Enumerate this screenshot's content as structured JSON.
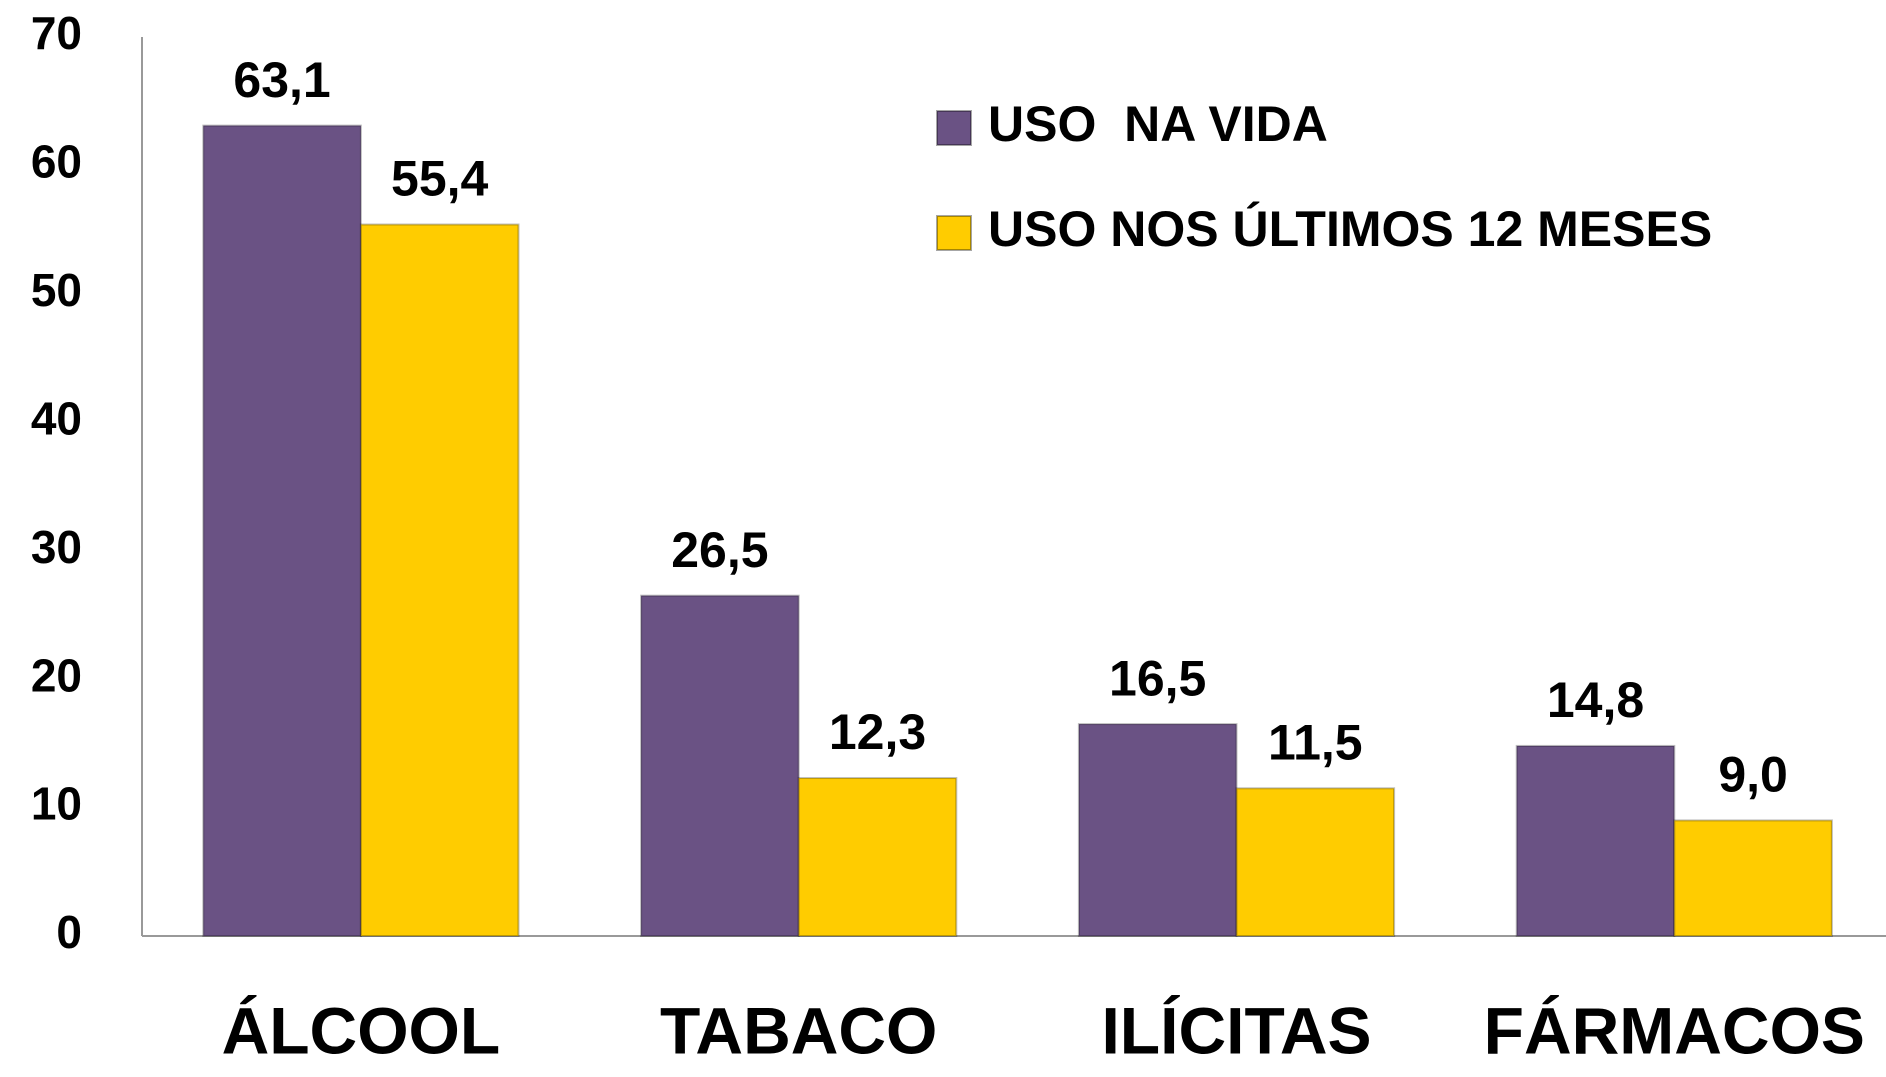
{
  "chart_data": {
    "type": "bar",
    "categories": [
      "ÁLCOOL",
      "TABACO",
      "ILÍCITAS",
      "FÁRMACOS"
    ],
    "series": [
      {
        "name": "USO  NA VIDA",
        "color": "#6a5284",
        "values": [
          63.1,
          26.5,
          16.5,
          14.8
        ],
        "value_labels": [
          "63,1",
          "26,5",
          "16,5",
          "14,8"
        ]
      },
      {
        "name": "USO NOS ÚLTIMOS 12 MESES",
        "color": "#ffcc00",
        "values": [
          55.4,
          12.3,
          11.5,
          9.0
        ],
        "value_labels": [
          "55,4",
          "12,3",
          "11,5",
          "9,0"
        ]
      }
    ],
    "ylim": [
      0,
      70
    ],
    "yticks": [
      0,
      10,
      20,
      30,
      40,
      50,
      60,
      70
    ],
    "grid": false,
    "legend": "top-right"
  }
}
